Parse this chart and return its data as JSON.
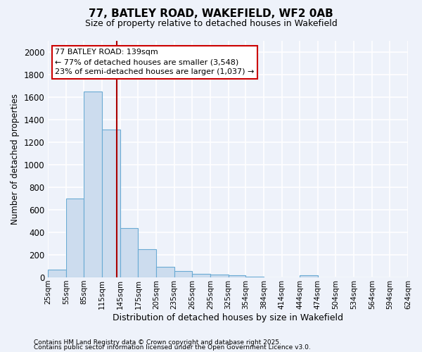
{
  "title_line1": "77, BATLEY ROAD, WAKEFIELD, WF2 0AB",
  "title_line2": "Size of property relative to detached houses in Wakefield",
  "xlabel": "Distribution of detached houses by size in Wakefield",
  "ylabel": "Number of detached properties",
  "bins": [
    "25sqm",
    "55sqm",
    "85sqm",
    "115sqm",
    "145sqm",
    "175sqm",
    "205sqm",
    "235sqm",
    "265sqm",
    "295sqm",
    "325sqm",
    "354sqm",
    "384sqm",
    "414sqm",
    "444sqm",
    "474sqm",
    "504sqm",
    "534sqm",
    "564sqm",
    "594sqm",
    "624sqm"
  ],
  "bin_edges": [
    25,
    55,
    85,
    115,
    145,
    175,
    205,
    235,
    265,
    295,
    325,
    354,
    384,
    414,
    444,
    474,
    504,
    534,
    564,
    594,
    624
  ],
  "values": [
    70,
    700,
    1650,
    1310,
    440,
    250,
    95,
    55,
    30,
    25,
    20,
    5,
    0,
    0,
    20,
    0,
    0,
    0,
    0,
    0
  ],
  "bar_color": "#ccdcee",
  "bar_edge_color": "#6aaad4",
  "red_line_x": 139,
  "annotation_title": "77 BATLEY ROAD: 139sqm",
  "annotation_line1": "← 77% of detached houses are smaller (3,548)",
  "annotation_line2": "23% of semi-detached houses are larger (1,037) →",
  "annotation_box_color": "#ffffff",
  "annotation_border_color": "#cc0000",
  "ylim": [
    0,
    2100
  ],
  "yticks": [
    0,
    200,
    400,
    600,
    800,
    1000,
    1200,
    1400,
    1600,
    1800,
    2000
  ],
  "footer_line1": "Contains HM Land Registry data © Crown copyright and database right 2025.",
  "footer_line2": "Contains public sector information licensed under the Open Government Licence v3.0.",
  "bg_color": "#eef2fa",
  "grid_color": "#ffffff"
}
